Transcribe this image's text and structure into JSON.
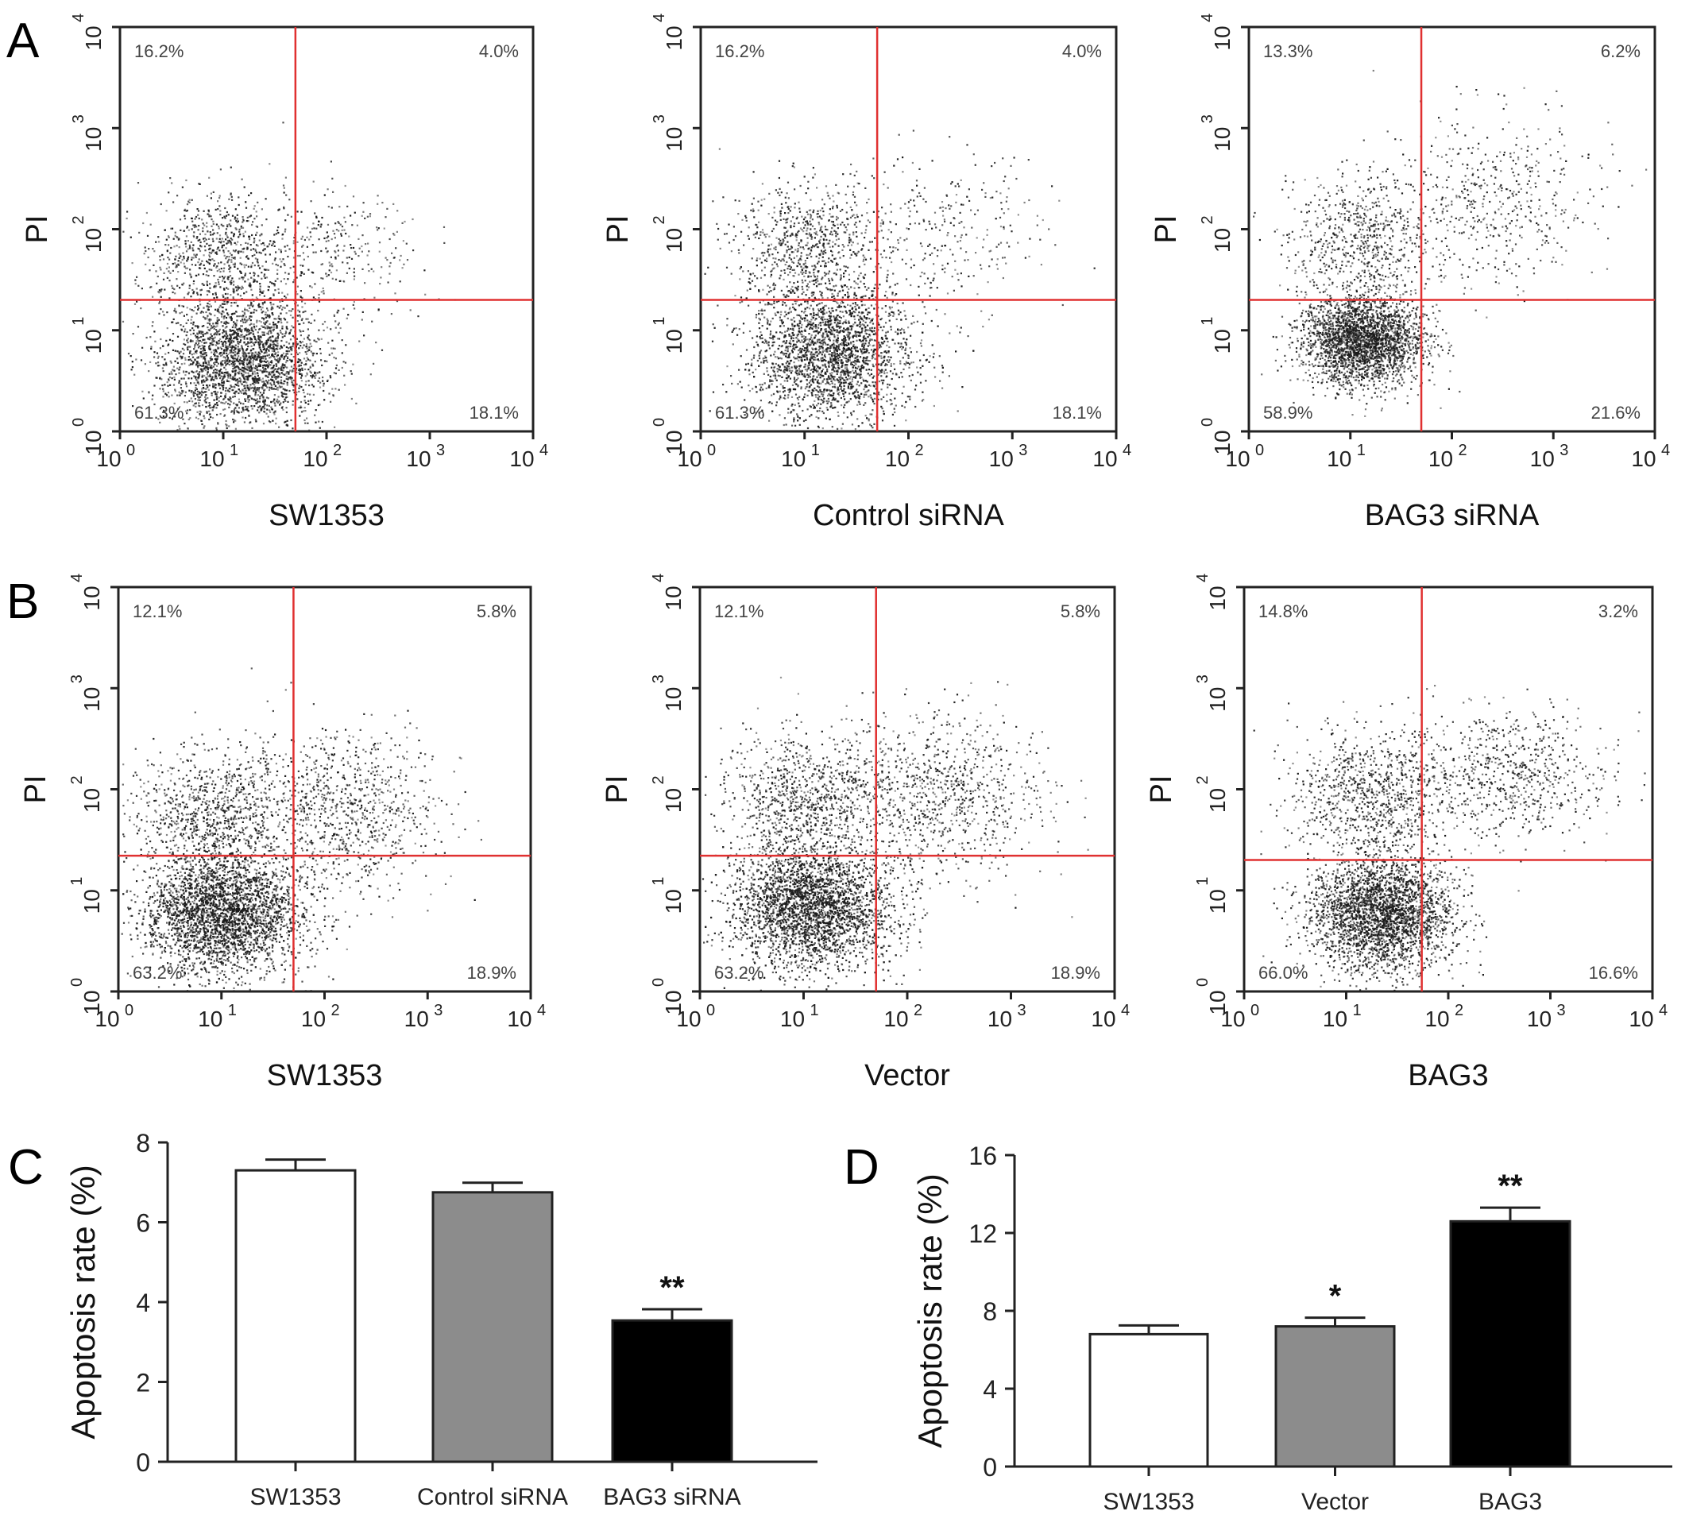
{
  "figure": {
    "panel_letters": [
      "A",
      "B",
      "C",
      "D"
    ]
  },
  "chart_data": [
    {
      "id": "A1",
      "type": "scatter",
      "panel": "A",
      "title": "",
      "xlabel": "SW1353",
      "ylabel": "PI",
      "xscale": "log",
      "yscale": "log",
      "xlim": [
        1,
        10000
      ],
      "ylim": [
        1,
        10000
      ],
      "x_tick_labels": [
        {
          "base": "10",
          "exp": "0"
        },
        {
          "base": "10",
          "exp": "1"
        },
        {
          "base": "10",
          "exp": "2"
        },
        {
          "base": "10",
          "exp": "3"
        },
        {
          "base": "10",
          "exp": "4"
        }
      ],
      "y_tick_labels": [
        {
          "base": "10",
          "exp": "0"
        },
        {
          "base": "10",
          "exp": "1"
        },
        {
          "base": "10",
          "exp": "2"
        },
        {
          "base": "10",
          "exp": "3"
        },
        {
          "base": "10",
          "exp": "4"
        }
      ],
      "gate": {
        "x": 50,
        "y": 20
      },
      "quadrants": {
        "upper_left": "16.2%",
        "upper_right": "4.0%",
        "lower_left": "61.3%",
        "lower_right": "18.1%"
      },
      "populations": [
        {
          "center": [
            15,
            5
          ],
          "spread": [
            0.38,
            0.33
          ],
          "n": 2600
        },
        {
          "center": [
            8,
            60
          ],
          "spread": [
            0.35,
            0.3
          ],
          "n": 700
        },
        {
          "center": [
            100,
            60
          ],
          "spread": [
            0.45,
            0.35
          ],
          "n": 350
        }
      ]
    },
    {
      "id": "A2",
      "type": "scatter",
      "panel": "A",
      "title": "",
      "xlabel": "Control siRNA",
      "ylabel": "PI",
      "xscale": "log",
      "yscale": "log",
      "xlim": [
        1,
        10000
      ],
      "ylim": [
        1,
        10000
      ],
      "x_tick_labels": [
        {
          "base": "10",
          "exp": "0"
        },
        {
          "base": "10",
          "exp": "1"
        },
        {
          "base": "10",
          "exp": "2"
        },
        {
          "base": "10",
          "exp": "3"
        },
        {
          "base": "10",
          "exp": "4"
        }
      ],
      "y_tick_labels": [
        {
          "base": "10",
          "exp": "0"
        },
        {
          "base": "10",
          "exp": "1"
        },
        {
          "base": "10",
          "exp": "2"
        },
        {
          "base": "10",
          "exp": "3"
        },
        {
          "base": "10",
          "exp": "4"
        }
      ],
      "gate": {
        "x": 50,
        "y": 20
      },
      "quadrants": {
        "upper_left": "16.2%",
        "upper_right": "4.0%",
        "lower_left": "61.3%",
        "lower_right": "18.1%"
      },
      "populations": [
        {
          "center": [
            18,
            6
          ],
          "spread": [
            0.38,
            0.33
          ],
          "n": 2600
        },
        {
          "center": [
            10,
            70
          ],
          "spread": [
            0.35,
            0.3
          ],
          "n": 700
        },
        {
          "center": [
            150,
            90
          ],
          "spread": [
            0.55,
            0.4
          ],
          "n": 350
        }
      ]
    },
    {
      "id": "A3",
      "type": "scatter",
      "panel": "A",
      "title": "",
      "xlabel": "BAG3 siRNA",
      "ylabel": "PI",
      "xscale": "log",
      "yscale": "log",
      "xlim": [
        1,
        10000
      ],
      "ylim": [
        1,
        10000
      ],
      "x_tick_labels": [
        {
          "base": "10",
          "exp": "0"
        },
        {
          "base": "10",
          "exp": "1"
        },
        {
          "base": "10",
          "exp": "2"
        },
        {
          "base": "10",
          "exp": "3"
        },
        {
          "base": "10",
          "exp": "4"
        }
      ],
      "y_tick_labels": [
        {
          "base": "10",
          "exp": "0"
        },
        {
          "base": "10",
          "exp": "1"
        },
        {
          "base": "10",
          "exp": "2"
        },
        {
          "base": "10",
          "exp": "3"
        },
        {
          "base": "10",
          "exp": "4"
        }
      ],
      "gate": {
        "x": 50,
        "y": 20
      },
      "quadrants": {
        "upper_left": "13.3%",
        "upper_right": "6.2%",
        "lower_left": "58.9%",
        "lower_right": "21.6%"
      },
      "populations": [
        {
          "center": [
            13,
            8
          ],
          "spread": [
            0.3,
            0.22
          ],
          "n": 2700
        },
        {
          "center": [
            12,
            80
          ],
          "spread": [
            0.35,
            0.3
          ],
          "n": 650
        },
        {
          "center": [
            250,
            200
          ],
          "spread": [
            0.5,
            0.4
          ],
          "n": 500
        }
      ]
    },
    {
      "id": "B1",
      "type": "scatter",
      "panel": "B",
      "title": "",
      "xlabel": "SW1353",
      "ylabel": "PI",
      "xscale": "log",
      "yscale": "log",
      "xlim": [
        1,
        10000
      ],
      "ylim": [
        1,
        10000
      ],
      "x_tick_labels": [
        {
          "base": "10",
          "exp": "0"
        },
        {
          "base": "10",
          "exp": "1"
        },
        {
          "base": "10",
          "exp": "2"
        },
        {
          "base": "10",
          "exp": "3"
        },
        {
          "base": "10",
          "exp": "4"
        }
      ],
      "y_tick_labels": [
        {
          "base": "10",
          "exp": "0"
        },
        {
          "base": "10",
          "exp": "1"
        },
        {
          "base": "10",
          "exp": "2"
        },
        {
          "base": "10",
          "exp": "3"
        },
        {
          "base": "10",
          "exp": "4"
        }
      ],
      "gate": {
        "x": 50,
        "y": 22
      },
      "quadrants": {
        "upper_left": "12.1%",
        "upper_right": "5.8%",
        "lower_left": "63.2%",
        "lower_right": "18.9%"
      },
      "populations": [
        {
          "center": [
            10,
            6
          ],
          "spread": [
            0.38,
            0.3
          ],
          "n": 3600
        },
        {
          "center": [
            8,
            60
          ],
          "spread": [
            0.4,
            0.3
          ],
          "n": 900
        },
        {
          "center": [
            150,
            60
          ],
          "spread": [
            0.45,
            0.4
          ],
          "n": 900
        }
      ]
    },
    {
      "id": "B2",
      "type": "scatter",
      "panel": "B",
      "title": "",
      "xlabel": "Vector",
      "ylabel": "PI",
      "xscale": "log",
      "yscale": "log",
      "xlim": [
        1,
        10000
      ],
      "ylim": [
        1,
        10000
      ],
      "x_tick_labels": [
        {
          "base": "10",
          "exp": "0"
        },
        {
          "base": "10",
          "exp": "1"
        },
        {
          "base": "10",
          "exp": "2"
        },
        {
          "base": "10",
          "exp": "3"
        },
        {
          "base": "10",
          "exp": "4"
        }
      ],
      "y_tick_labels": [
        {
          "base": "10",
          "exp": "0"
        },
        {
          "base": "10",
          "exp": "1"
        },
        {
          "base": "10",
          "exp": "2"
        },
        {
          "base": "10",
          "exp": "3"
        },
        {
          "base": "10",
          "exp": "4"
        }
      ],
      "gate": {
        "x": 50,
        "y": 22
      },
      "quadrants": {
        "upper_left": "12.1%",
        "upper_right": "5.8%",
        "lower_left": "63.2%",
        "lower_right": "18.9%"
      },
      "populations": [
        {
          "center": [
            12,
            7
          ],
          "spread": [
            0.38,
            0.3
          ],
          "n": 3600
        },
        {
          "center": [
            10,
            80
          ],
          "spread": [
            0.4,
            0.32
          ],
          "n": 900
        },
        {
          "center": [
            200,
            90
          ],
          "spread": [
            0.5,
            0.4
          ],
          "n": 900
        }
      ]
    },
    {
      "id": "B3",
      "type": "scatter",
      "panel": "B",
      "title": "",
      "xlabel": "BAG3",
      "ylabel": "PI",
      "xscale": "log",
      "yscale": "log",
      "xlim": [
        1,
        10000
      ],
      "ylim": [
        1,
        10000
      ],
      "x_tick_labels": [
        {
          "base": "10",
          "exp": "0"
        },
        {
          "base": "10",
          "exp": "1"
        },
        {
          "base": "10",
          "exp": "2"
        },
        {
          "base": "10",
          "exp": "3"
        },
        {
          "base": "10",
          "exp": "4"
        }
      ],
      "y_tick_labels": [
        {
          "base": "10",
          "exp": "0"
        },
        {
          "base": "10",
          "exp": "1"
        },
        {
          "base": "10",
          "exp": "2"
        },
        {
          "base": "10",
          "exp": "3"
        },
        {
          "base": "10",
          "exp": "4"
        }
      ],
      "gate": {
        "x": 55,
        "y": 20
      },
      "quadrants": {
        "upper_left": "14.8%",
        "upper_right": "3.2%",
        "lower_left": "66.0%",
        "lower_right": "16.6%"
      },
      "populations": [
        {
          "center": [
            22,
            6
          ],
          "spread": [
            0.35,
            0.28
          ],
          "n": 3200
        },
        {
          "center": [
            18,
            90
          ],
          "spread": [
            0.4,
            0.32
          ],
          "n": 900
        },
        {
          "center": [
            400,
            150
          ],
          "spread": [
            0.5,
            0.3
          ],
          "n": 700
        }
      ]
    },
    {
      "id": "C",
      "type": "bar",
      "panel": "C",
      "title": "",
      "xlabel": "",
      "ylabel": "Apoptosis rate (%)",
      "categories": [
        "SW1353",
        "Control siRNA",
        "BAG3 siRNA"
      ],
      "values": [
        7.3,
        6.75,
        3.54
      ],
      "errors": [
        0.27,
        0.24,
        0.28
      ],
      "significance": [
        "",
        "",
        "**"
      ],
      "colors": [
        "#ffffff",
        "#8c8c8c",
        "#000000"
      ],
      "ylim": [
        0,
        8
      ],
      "yticks": [
        "0",
        "2",
        "4",
        "6",
        "8"
      ],
      "grid": false
    },
    {
      "id": "D",
      "type": "bar",
      "panel": "D",
      "title": "",
      "xlabel": "",
      "ylabel": "Apoptosis rate (%)",
      "categories": [
        "SW1353",
        "Vector",
        "BAG3"
      ],
      "values": [
        6.8,
        7.2,
        12.6
      ],
      "errors": [
        0.45,
        0.45,
        0.7
      ],
      "significance": [
        "",
        "*",
        "**"
      ],
      "colors": [
        "#ffffff",
        "#8c8c8c",
        "#000000"
      ],
      "ylim": [
        0,
        16
      ],
      "yticks": [
        "0",
        "4",
        "8",
        "12",
        "16"
      ],
      "grid": false
    }
  ],
  "colors": {
    "gate_line": "#e03030",
    "dots": "#1a1a1a",
    "axis": "#222222"
  }
}
